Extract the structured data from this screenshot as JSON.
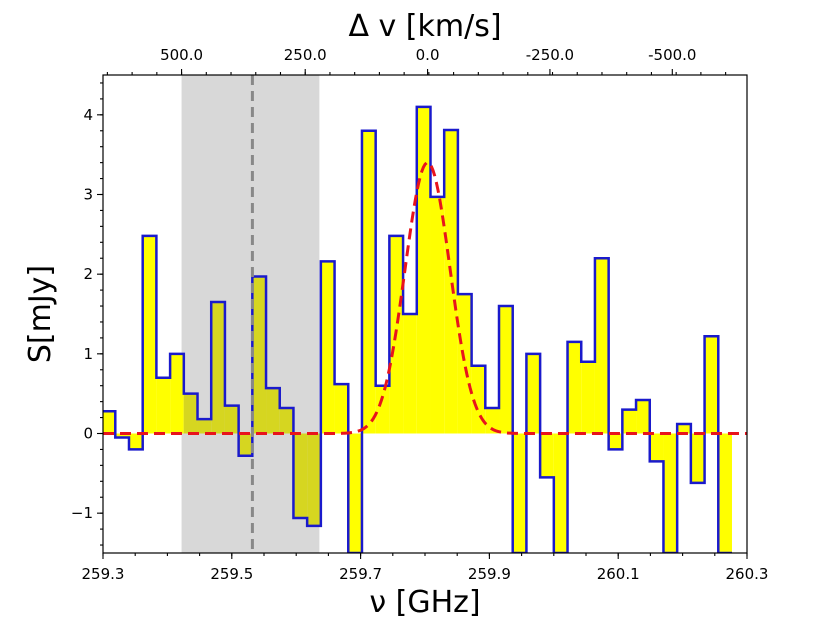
{
  "chart_data": {
    "type": "step",
    "xlabel": "ν [GHz]",
    "ylabel": "S[mJy]",
    "top_xlabel": "Δ v [km/s]",
    "xlim": [
      259.3,
      260.3
    ],
    "ylim": [
      -1.5,
      4.5
    ],
    "x_ticks": [
      "259.3",
      "259.5",
      "259.7",
      "259.9",
      "260.1",
      "260.3"
    ],
    "y_ticks": [
      "−1",
      "0",
      "1",
      "2",
      "3",
      "4"
    ],
    "top_x_ticks": [
      {
        "label": "500.0",
        "freq": 259.422
      },
      {
        "label": "250.0",
        "freq": 259.614
      },
      {
        "label": "0.0",
        "freq": 259.804
      },
      {
        "label": "-250.0",
        "freq": 259.994
      },
      {
        "label": "-500.0",
        "freq": 260.184
      }
    ],
    "bin_width": 0.02128,
    "bin_start": 259.2978,
    "spectrum": [
      0.28,
      -0.05,
      -0.2,
      2.48,
      0.7,
      1.0,
      0.5,
      0.18,
      1.65,
      0.35,
      -0.28,
      1.97,
      0.57,
      0.32,
      -1.06,
      -1.16,
      2.16,
      0.62,
      -1.5,
      3.8,
      0.6,
      2.48,
      1.5,
      4.1,
      2.97,
      3.81,
      1.75,
      0.85,
      0.32,
      1.6,
      -1.5,
      1.0,
      -0.55,
      -1.5,
      1.15,
      0.9,
      2.2,
      -0.2,
      0.3,
      0.42,
      -0.35,
      -1.5,
      0.12,
      -0.62,
      1.22,
      -1.5
    ],
    "gaussian_fit": {
      "amplitude": 3.4,
      "center": 259.804,
      "sigma": 0.035,
      "color": "#e8141c"
    },
    "shaded_region": {
      "x0": 259.422,
      "x1": 259.636,
      "color": "#d8d8d8"
    },
    "vertical_line": {
      "x": 259.532,
      "color": "#888888"
    },
    "colors": {
      "fill": "#ffff00",
      "fill_overlap": "#d6d620",
      "step_line": "#1a1acc"
    },
    "grid": false
  }
}
